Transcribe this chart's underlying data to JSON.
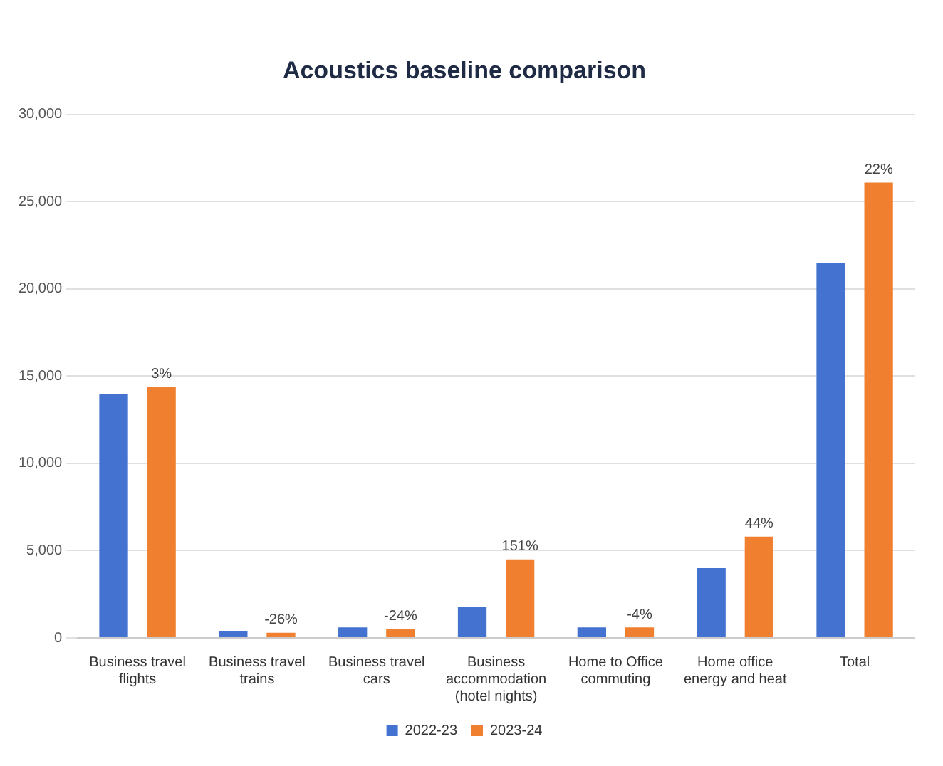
{
  "chart_data": {
    "type": "bar",
    "title": "Acoustics baseline comparison",
    "categories": [
      "Business travel flights",
      "Business travel trains",
      "Business travel cars",
      "Business accommodation (hotel nights)",
      "Home to Office commuting",
      "Home office energy and heat",
      "Total"
    ],
    "series": [
      {
        "name": "2022-23",
        "color": "#4472d0",
        "values": [
          14000,
          400,
          600,
          1800,
          600,
          4000,
          21500
        ]
      },
      {
        "name": "2023-24",
        "color": "#f08030",
        "values": [
          14400,
          300,
          500,
          4500,
          600,
          5800,
          26100
        ]
      }
    ],
    "annotations": [
      "3%",
      "-26%",
      "-24%",
      "151%",
      "-4%",
      "44%",
      "22%"
    ],
    "ylim": [
      0,
      30000
    ],
    "yticks": [
      0,
      {
        "value": 5000,
        "label": "5,000"
      },
      {
        "value": 10000,
        "label": "10,000"
      },
      {
        "value": 15000,
        "label": "15,000"
      },
      {
        "value": 20000,
        "label": "20,000"
      },
      {
        "value": 25000,
        "label": "25,000"
      },
      {
        "value": 30000,
        "label": "30,000"
      }
    ],
    "grid": "y",
    "legend": "bottom"
  }
}
